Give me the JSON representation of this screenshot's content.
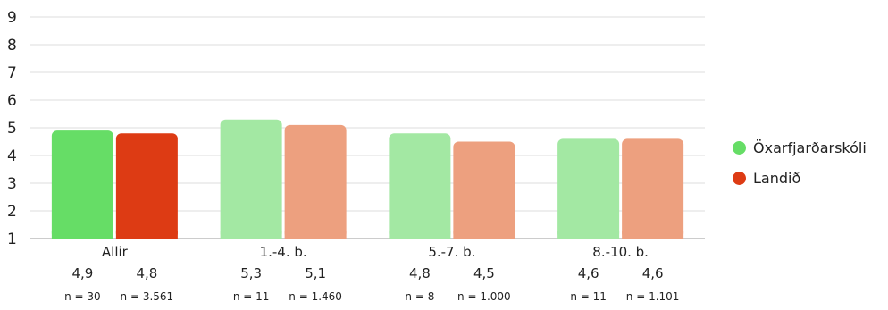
{
  "chart_data": {
    "type": "bar",
    "categories": [
      "Allir",
      "1.-4. b.",
      "5.-7. b.",
      "8.-10. b."
    ],
    "yticks": [
      "1",
      "2",
      "3",
      "4",
      "5",
      "6",
      "7",
      "8",
      "9"
    ],
    "ylim": [
      1,
      9
    ],
    "grid": true,
    "legend_position": "right",
    "series": [
      {
        "name": "Öxarfjarðarskóli",
        "values": [
          4.9,
          5.3,
          4.8,
          4.6
        ],
        "value_labels": [
          "4,9",
          "5,3",
          "4,8",
          "4,6"
        ],
        "n_labels": [
          "n = 30",
          "n = 11",
          "n = 8",
          "n = 11"
        ],
        "colors": [
          "#66dd66",
          "#a3e8a3",
          "#a3e8a3",
          "#a3e8a3"
        ],
        "legend_color": "#66dd66"
      },
      {
        "name": "Landið",
        "values": [
          4.8,
          5.1,
          4.5,
          4.6
        ],
        "value_labels": [
          "4,8",
          "5,1",
          "4,5",
          "4,6"
        ],
        "n_labels": [
          "n = 3.561",
          "n = 1.460",
          "n = 1.000",
          "n = 1.101"
        ],
        "colors": [
          "#dd3b14",
          "#eda07f",
          "#eda07f",
          "#eda07f"
        ],
        "legend_color": "#dd3b14"
      }
    ]
  }
}
